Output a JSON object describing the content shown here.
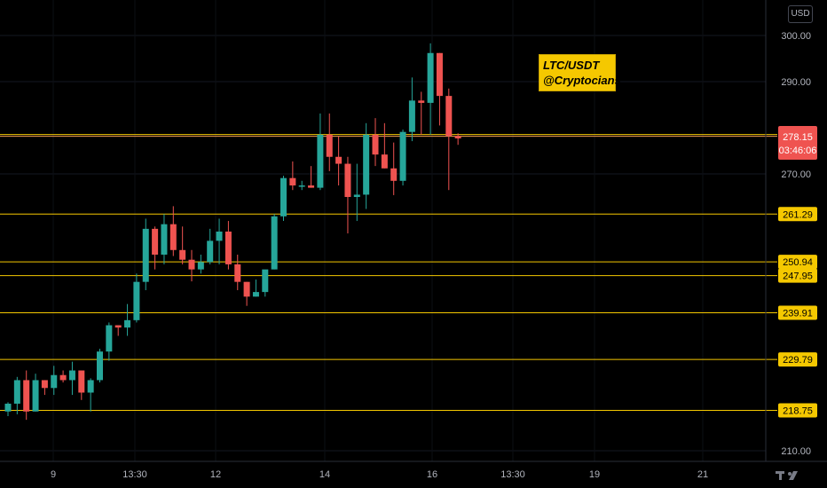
{
  "currency_button": "USD",
  "annotation": {
    "line1": "LTC/USDT",
    "line2": "@Cryptocians"
  },
  "colors": {
    "background": "#000000",
    "up": "#26a69a",
    "down": "#ef5350",
    "level": "#f5c800",
    "price_line": "#ef9a53",
    "axis_text": "#b2b5be"
  },
  "current_price": {
    "value": "278.15",
    "countdown": "03:46:06"
  },
  "chart_data": {
    "type": "candlestick",
    "title": "",
    "ylim": [
      207,
      307
    ],
    "y_ticks": [
      "300.00",
      "290.00",
      "270.00",
      "210.00"
    ],
    "x_ticks": [
      "9",
      "13:30",
      "12",
      "14",
      "16",
      "13:30",
      "19",
      "21"
    ],
    "levels": [
      {
        "value": 278.53,
        "label": "278.53"
      },
      {
        "value": 261.29,
        "label": "261.29"
      },
      {
        "value": 250.94,
        "label": "250.94"
      },
      {
        "value": 247.95,
        "label": "247.95"
      },
      {
        "value": 239.91,
        "label": "239.91"
      },
      {
        "value": 229.79,
        "label": "229.79"
      },
      {
        "value": 218.75,
        "label": "218.75"
      }
    ],
    "candles": [
      [
        218.5,
        220.5,
        217.5,
        220.2
      ],
      [
        220.2,
        226.0,
        217.9,
        225.3
      ],
      [
        225.3,
        227.4,
        216.7,
        218.5
      ],
      [
        218.5,
        226.7,
        218.5,
        225.3
      ],
      [
        225.3,
        225.3,
        222.1,
        223.6
      ],
      [
        223.6,
        228.4,
        222.1,
        226.4
      ],
      [
        226.4,
        227.4,
        224.8,
        225.3
      ],
      [
        225.3,
        229.3,
        222.1,
        227.4
      ],
      [
        227.4,
        227.4,
        221.0,
        222.6
      ],
      [
        222.6,
        225.7,
        218.5,
        225.3
      ],
      [
        225.3,
        232.1,
        224.8,
        231.5
      ],
      [
        231.5,
        237.8,
        229.5,
        237.2
      ],
      [
        237.2,
        237.2,
        234.9,
        236.7
      ],
      [
        236.7,
        241.8,
        234.9,
        238.3
      ],
      [
        238.3,
        248.4,
        237.8,
        246.6
      ],
      [
        246.6,
        260.3,
        244.8,
        258.1
      ],
      [
        258.1,
        258.6,
        249.3,
        252.5
      ],
      [
        252.5,
        261.3,
        250.4,
        259.1
      ],
      [
        259.1,
        263.0,
        252.2,
        253.5
      ],
      [
        253.5,
        258.6,
        250.4,
        251.4
      ],
      [
        251.4,
        253.5,
        246.7,
        249.3
      ],
      [
        249.3,
        252.5,
        248.4,
        250.9
      ],
      [
        250.9,
        258.1,
        250.4,
        255.5
      ],
      [
        255.5,
        260.3,
        250.4,
        257.5
      ],
      [
        257.5,
        259.8,
        249.3,
        250.4
      ],
      [
        250.4,
        252.5,
        244.8,
        246.6
      ],
      [
        246.6,
        246.6,
        241.4,
        243.4
      ],
      [
        243.4,
        247.1,
        243.4,
        244.4
      ],
      [
        244.4,
        248.4,
        243.4,
        249.3
      ],
      [
        249.3,
        261.3,
        249.3,
        260.8
      ],
      [
        260.8,
        269.6,
        259.8,
        269.1
      ],
      [
        269.1,
        272.7,
        266.5,
        267.5
      ],
      [
        267.5,
        268.5,
        266.5,
        267.5
      ],
      [
        267.5,
        271.7,
        267.0,
        267.0
      ],
      [
        267.0,
        283.1,
        266.5,
        278.5
      ],
      [
        278.5,
        283.1,
        270.6,
        273.7
      ],
      [
        273.7,
        278.1,
        267.5,
        272.2
      ],
      [
        272.2,
        273.7,
        257.1,
        265.0
      ],
      [
        265.0,
        272.2,
        259.8,
        265.5
      ],
      [
        265.5,
        281.0,
        262.4,
        278.5
      ],
      [
        278.5,
        282.1,
        271.7,
        274.2
      ],
      [
        274.2,
        281.0,
        271.2,
        271.2
      ],
      [
        271.2,
        276.8,
        265.4,
        268.5
      ],
      [
        268.5,
        279.6,
        267.5,
        279.1
      ],
      [
        279.1,
        290.9,
        277.1,
        285.9
      ],
      [
        285.9,
        287.8,
        278.5,
        285.4
      ],
      [
        285.4,
        298.3,
        278.5,
        296.2
      ],
      [
        296.2,
        296.2,
        280.5,
        286.9
      ],
      [
        286.9,
        288.5,
        266.5,
        278.2
      ],
      [
        278.2,
        278.8,
        276.3,
        277.7
      ]
    ]
  }
}
